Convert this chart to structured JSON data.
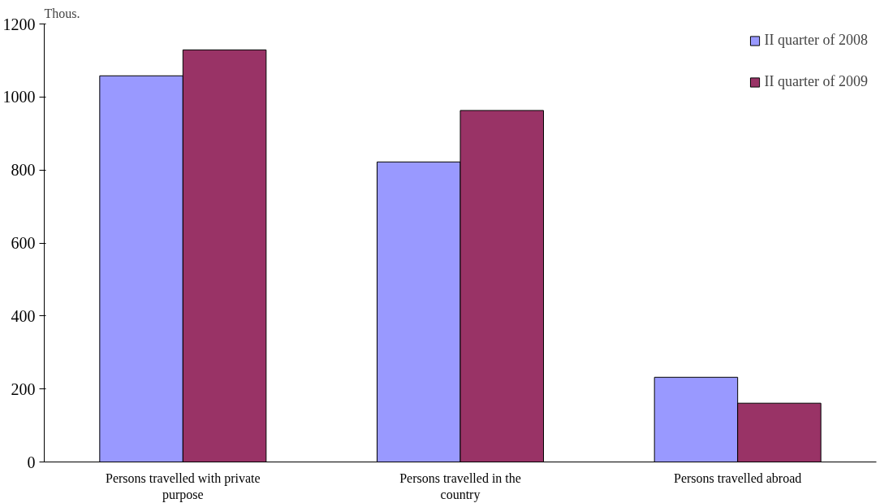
{
  "chart_data": {
    "type": "bar",
    "ylabel": "Thous.",
    "categories": [
      "Persons travelled with private purpose",
      "Persons travelled in the country",
      "Persons travelled abroad"
    ],
    "series": [
      {
        "name": "II quarter of 2008",
        "color": "#9999ff",
        "values": [
          1058,
          822,
          232
        ]
      },
      {
        "name": "II quarter of 2009",
        "color": "#993366",
        "values": [
          1129,
          963,
          161
        ]
      }
    ],
    "ylim": [
      0,
      1200
    ],
    "yticks": [
      0,
      200,
      400,
      600,
      800,
      1000,
      1200
    ],
    "grid": false,
    "legend": "top right"
  }
}
